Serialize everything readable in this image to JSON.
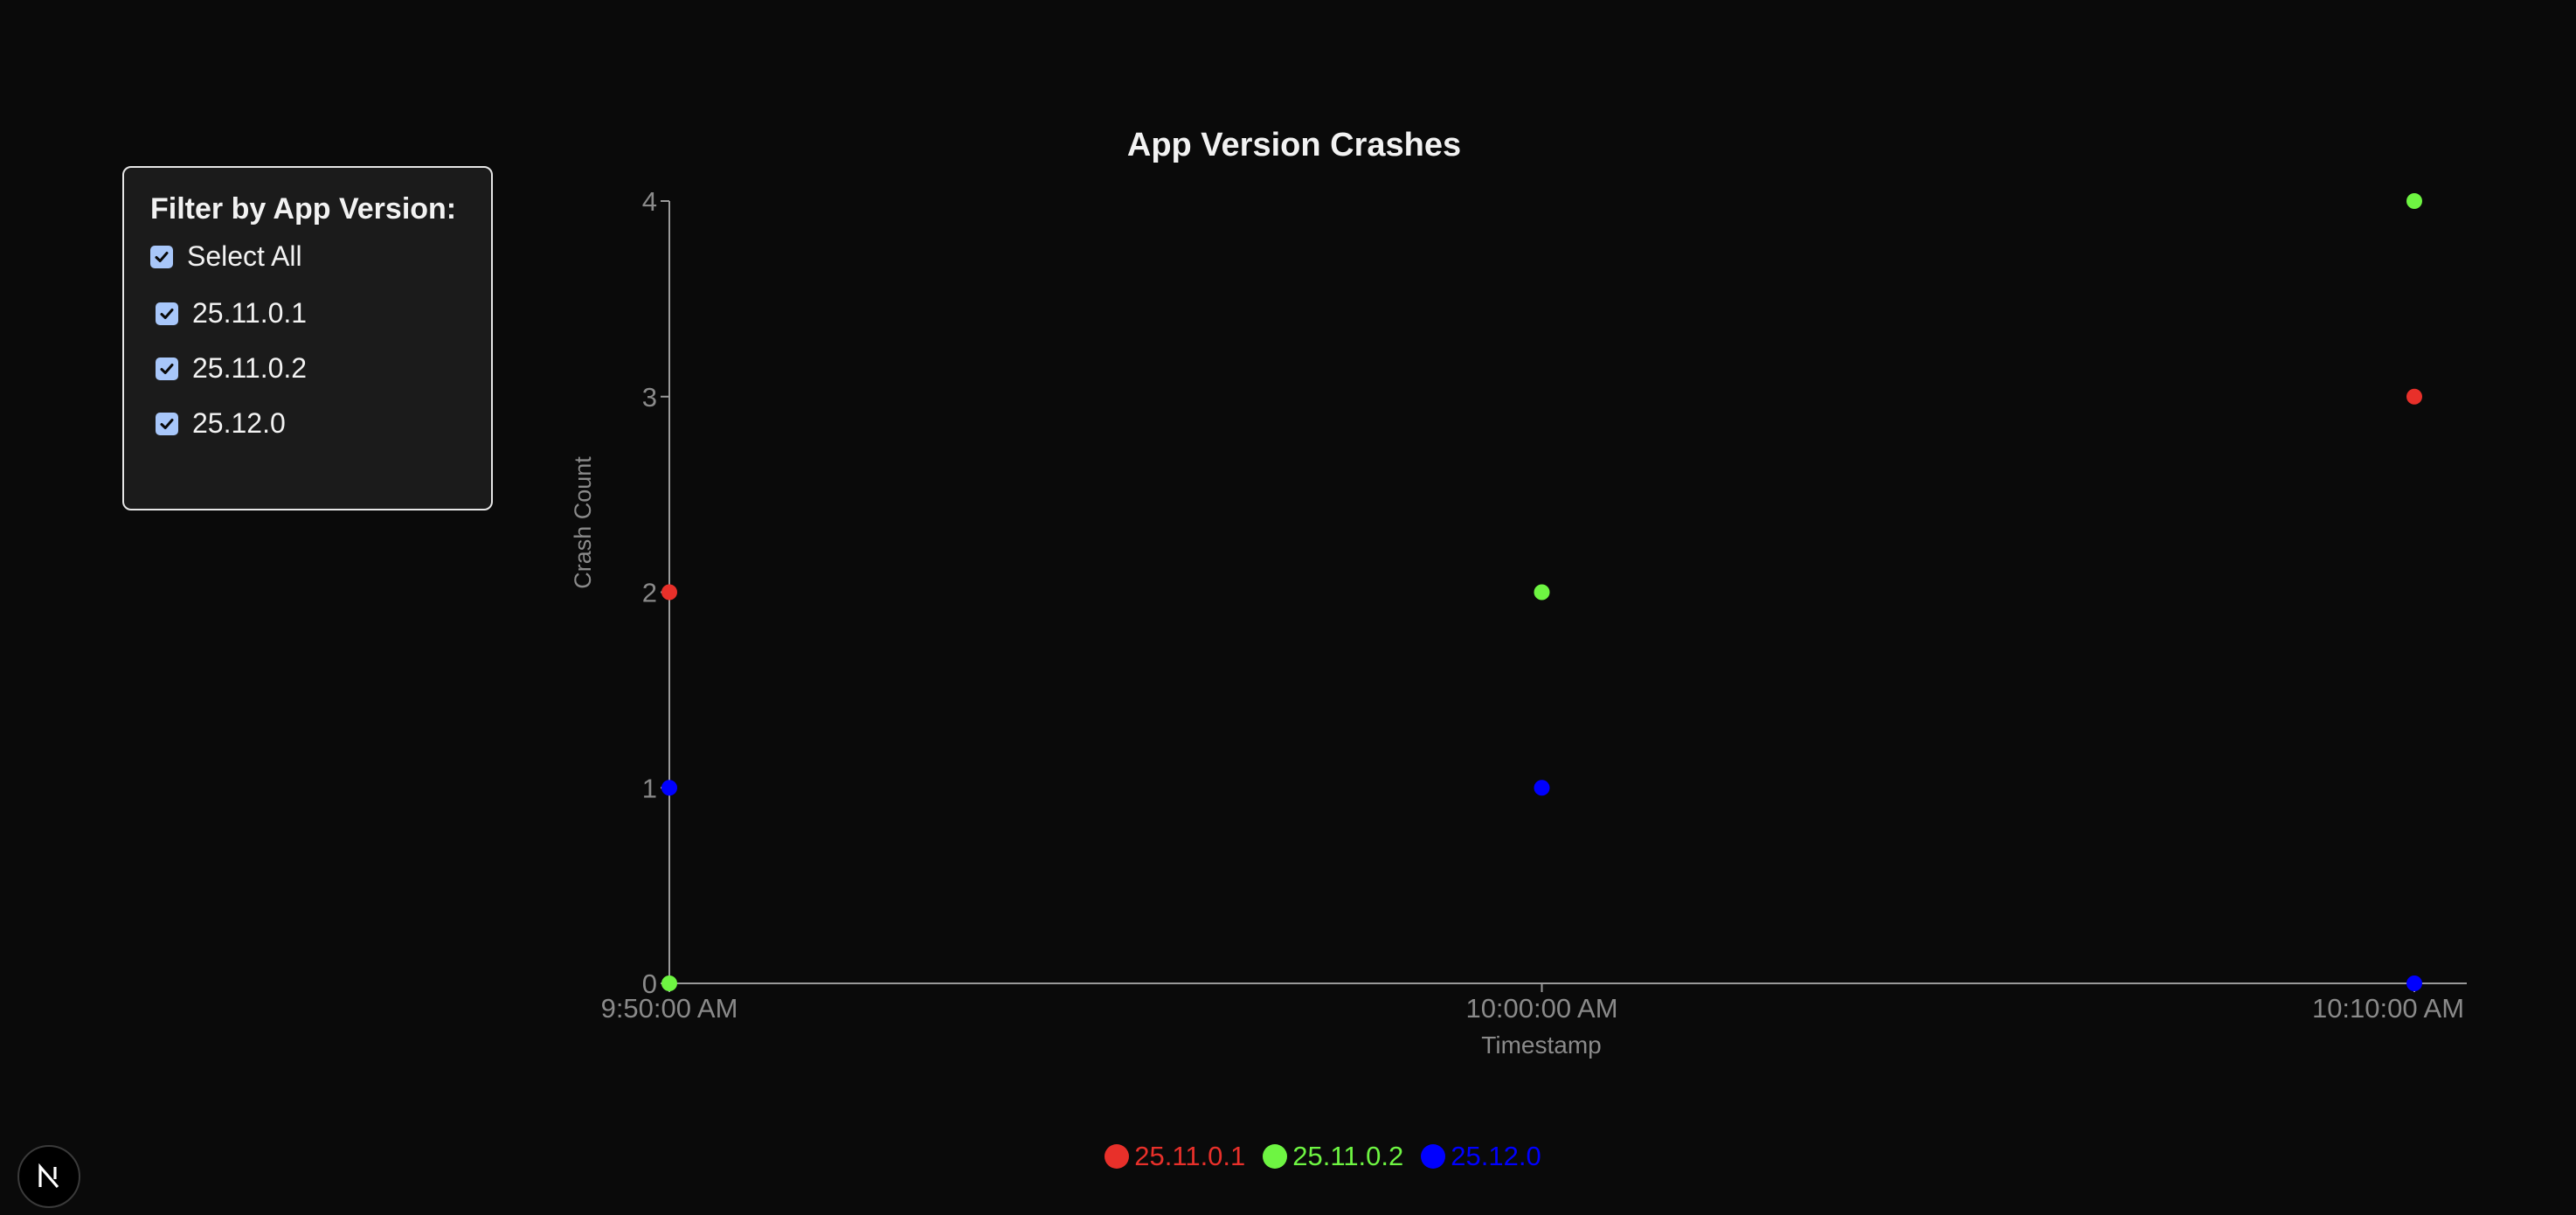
{
  "filter": {
    "title": "Filter by App Version:",
    "select_all_label": "Select All",
    "select_all_checked": true,
    "versions": [
      {
        "label": "25.11.0.1",
        "checked": true
      },
      {
        "label": "25.11.0.2",
        "checked": true
      },
      {
        "label": "25.12.0",
        "checked": true
      }
    ]
  },
  "chart_data": {
    "type": "scatter",
    "title": "App Version Crashes",
    "xlabel": "Timestamp",
    "ylabel": "Crash Count",
    "x": [
      "9:50:00 AM",
      "10:00:00 AM",
      "10:10:00 AM"
    ],
    "yticks": [
      0,
      1,
      2,
      3,
      4
    ],
    "ylim": [
      0,
      4
    ],
    "grid": false,
    "legend_position": "bottom",
    "series": [
      {
        "name": "25.11.0.1",
        "color": "#e8302a",
        "values": [
          2,
          null,
          3
        ]
      },
      {
        "name": "25.11.0.2",
        "color": "#6ef542",
        "values": [
          0,
          2,
          4
        ]
      },
      {
        "name": "25.12.0",
        "color": "#0000ff",
        "values": [
          1,
          1,
          0
        ]
      }
    ]
  },
  "badge": {
    "icon": "next-logo-icon"
  }
}
